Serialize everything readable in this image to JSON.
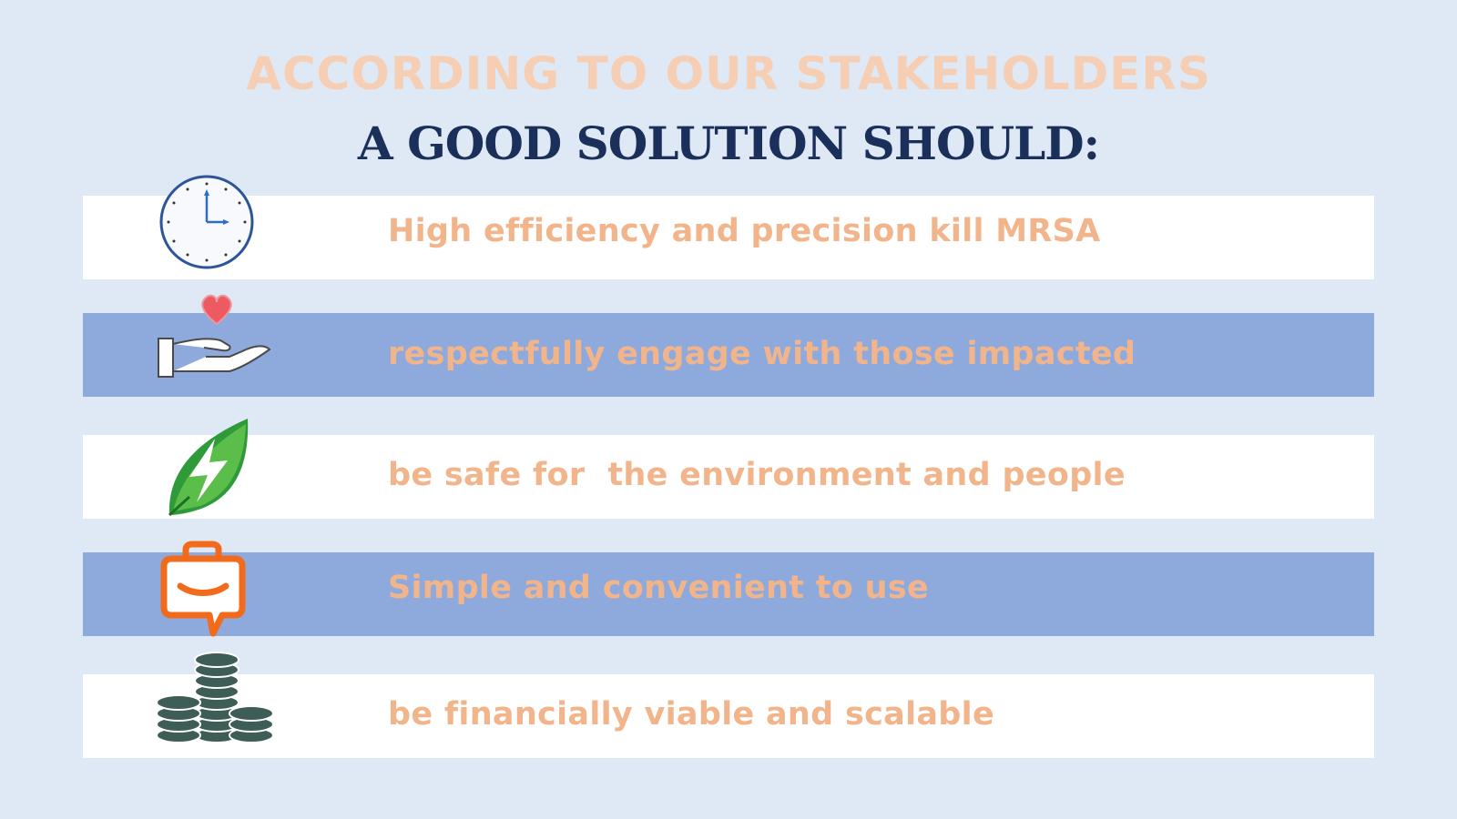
{
  "header": {
    "title": "ACCORDING TO OUR STAKEHOLDERS",
    "subtitle": "A GOOD SOLUTION SHOULD:"
  },
  "criteria": [
    {
      "label": "High efficiency and precision kill MRSA",
      "icon": "clock-icon"
    },
    {
      "label": "respectfully engage with those impacted",
      "icon": "hand-heart-icon"
    },
    {
      "label": "be safe for  the environment and people",
      "icon": "leaf-energy-icon"
    },
    {
      "label": "Simple and convenient to use",
      "icon": "briefcase-chat-icon"
    },
    {
      "label": "be financially viable and scalable",
      "icon": "coin-stacks-icon"
    }
  ],
  "colors": {
    "background": "#dfe9f5",
    "band_white": "#ffffff",
    "band_blue": "#8eaadd",
    "text_peach": "#f2b48a",
    "title_peach": "#f6ceb4",
    "subtitle_navy": "#1b2f5b"
  }
}
